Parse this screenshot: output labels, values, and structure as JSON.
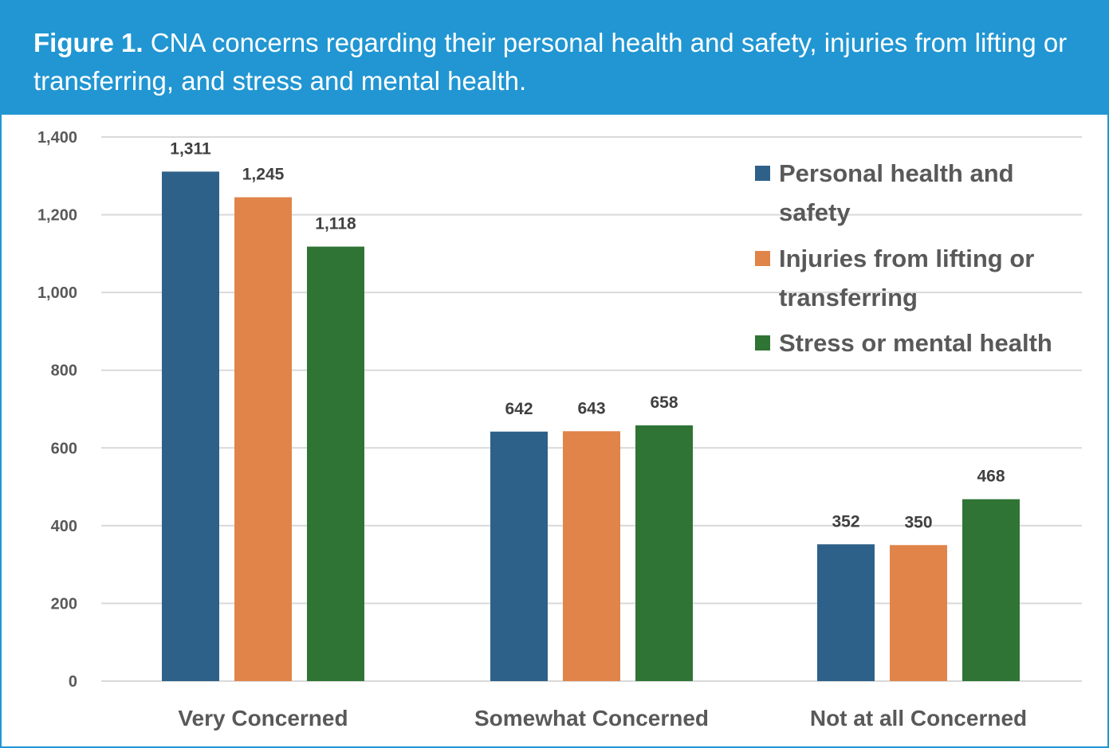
{
  "header": {
    "figure_label": "Figure 1.",
    "caption": "CNA concerns regarding their personal health and safety, injuries from lifting or transferring, and stress and mental health."
  },
  "chart_data": {
    "type": "bar",
    "categories": [
      "Very Concerned",
      "Somewhat Concerned",
      "Not at all Concerned"
    ],
    "series": [
      {
        "name": "Personal health and safety",
        "color": "#2e6189",
        "values": [
          1311,
          642,
          352
        ],
        "labels": [
          "1,311",
          "642",
          "352"
        ]
      },
      {
        "name": "Injuries from lifting or transferring",
        "color": "#e0844a",
        "values": [
          1245,
          643,
          350
        ],
        "labels": [
          "1,245",
          "643",
          "350"
        ]
      },
      {
        "name": "Stress or mental health",
        "color": "#2f7434",
        "values": [
          1118,
          658,
          468
        ],
        "labels": [
          "1,118",
          "658",
          "468"
        ]
      }
    ],
    "yticks": [
      "0",
      "200",
      "400",
      "600",
      "800",
      "1,000",
      "1,200",
      "1,400"
    ],
    "ylim": [
      0,
      1400
    ],
    "grid": true,
    "legend_position": "top-right"
  }
}
